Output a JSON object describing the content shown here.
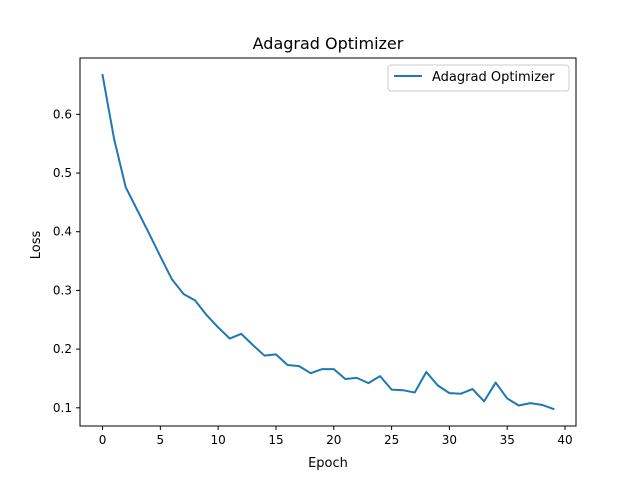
{
  "chart_data": {
    "type": "line",
    "title": "Adagrad Optimizer",
    "xlabel": "Epoch",
    "ylabel": "Loss",
    "xlim": [
      -1.95,
      40.95
    ],
    "ylim": [
      0.069,
      0.696
    ],
    "xticks": [
      0,
      5,
      10,
      15,
      20,
      25,
      30,
      35,
      40
    ],
    "yticks": [
      0.1,
      0.2,
      0.3,
      0.4,
      0.5,
      0.6
    ],
    "xtick_labels": [
      "0",
      "5",
      "10",
      "15",
      "20",
      "25",
      "30",
      "35",
      "40"
    ],
    "ytick_labels": [
      "0.1",
      "0.2",
      "0.3",
      "0.4",
      "0.5",
      "0.6"
    ],
    "grid": false,
    "legend_position": "top-right",
    "series": [
      {
        "name": "Adagrad Optimizer",
        "color": "#1f77b4",
        "x": [
          0,
          1,
          2,
          3,
          4,
          5,
          6,
          7,
          8,
          9,
          10,
          11,
          12,
          13,
          14,
          15,
          16,
          17,
          18,
          19,
          20,
          21,
          22,
          23,
          24,
          25,
          26,
          27,
          28,
          29,
          30,
          31,
          32,
          33,
          34,
          35,
          36,
          37,
          38,
          39
        ],
        "values": [
          0.667,
          0.558,
          0.476,
          0.437,
          0.398,
          0.358,
          0.319,
          0.294,
          0.283,
          0.258,
          0.237,
          0.218,
          0.226,
          0.207,
          0.189,
          0.191,
          0.173,
          0.171,
          0.159,
          0.166,
          0.166,
          0.149,
          0.151,
          0.142,
          0.154,
          0.131,
          0.13,
          0.126,
          0.161,
          0.138,
          0.125,
          0.124,
          0.132,
          0.111,
          0.143,
          0.116,
          0.104,
          0.108,
          0.105,
          0.098
        ]
      }
    ]
  }
}
